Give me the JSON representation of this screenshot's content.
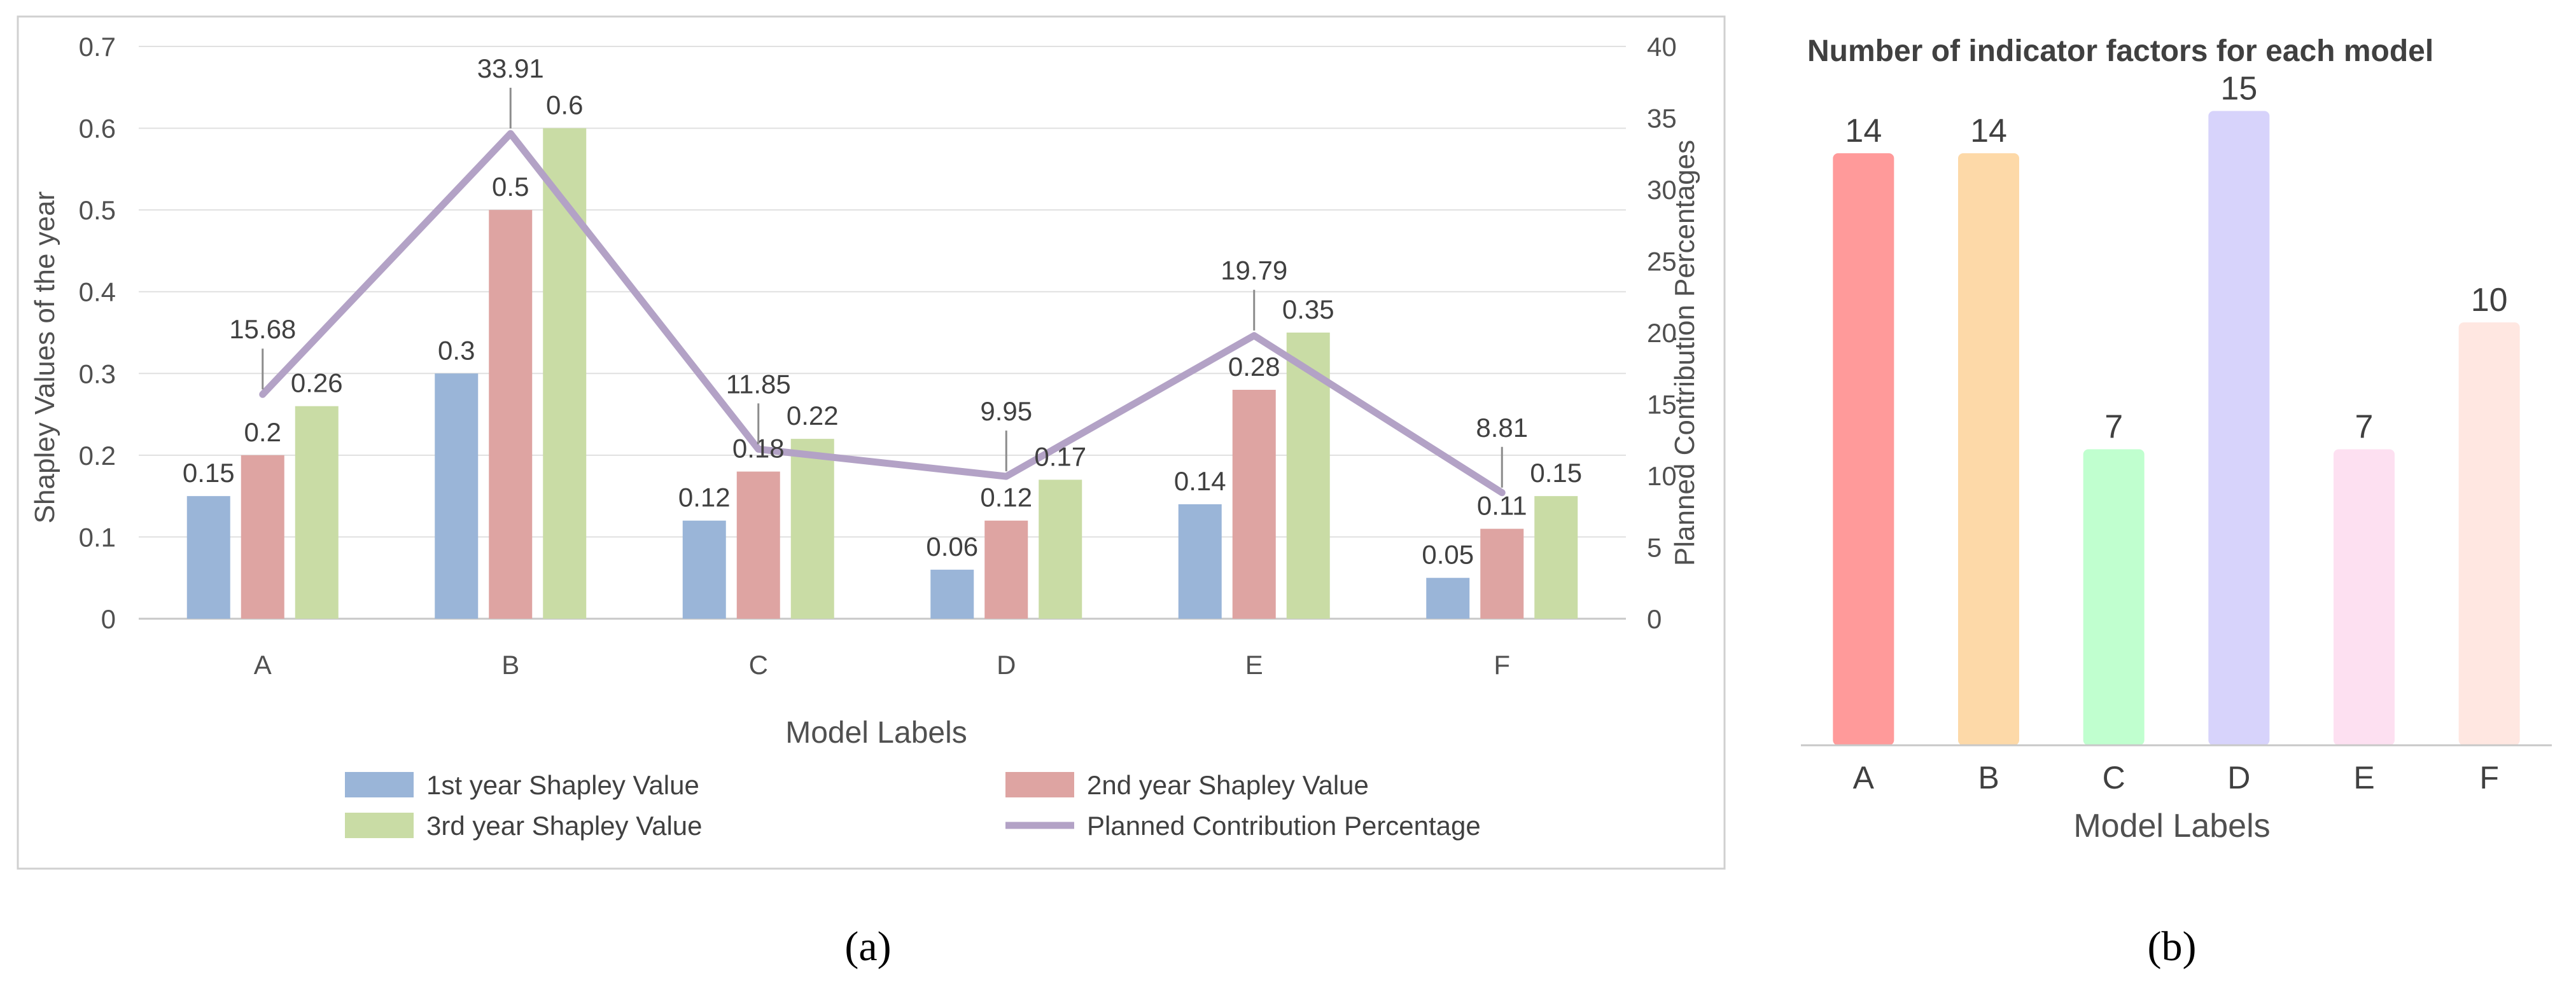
{
  "panel_captions": [
    "(a)",
    "(b)"
  ],
  "chart_data": [
    {
      "type": "bar",
      "categories": [
        "A",
        "B",
        "C",
        "D",
        "E",
        "F"
      ],
      "xlabel": "Model Labels",
      "ylabel": "Shapley Values of the year",
      "y2label": "Planned Contribution Percentages",
      "ylim": [
        0,
        0.7
      ],
      "y2lim": [
        0,
        40
      ],
      "yticks": [
        "0",
        "0.1",
        "0.2",
        "0.3",
        "0.4",
        "0.5",
        "0.6",
        "0.7"
      ],
      "y2ticks": [
        "0",
        "5",
        "10",
        "15",
        "20",
        "25",
        "30",
        "35",
        "40"
      ],
      "grid": true,
      "legend_position": "bottom",
      "series": [
        {
          "name": "1st year Shapley Value",
          "type": "bar",
          "color": "#9ab5d8",
          "values": [
            0.15,
            0.3,
            0.12,
            0.06,
            0.14,
            0.05
          ],
          "labels": [
            "0.15",
            "0.3",
            "0.12",
            "0.06",
            "0.14",
            "0.05"
          ]
        },
        {
          "name": "2nd year Shapley Value",
          "type": "bar",
          "color": "#dea4a2",
          "values": [
            0.2,
            0.5,
            0.18,
            0.12,
            0.28,
            0.11
          ],
          "labels": [
            "0.2",
            "0.5",
            "0.18",
            "0.12",
            "0.28",
            "0.11"
          ]
        },
        {
          "name": "3rd year Shapley Value",
          "type": "bar",
          "color": "#c9dca5",
          "values": [
            0.26,
            0.6,
            0.22,
            0.17,
            0.35,
            0.15
          ],
          "labels": [
            "0.26",
            "0.6",
            "0.22",
            "0.17",
            "0.35",
            "0.15"
          ]
        },
        {
          "name": "Planned Contribution Percentage",
          "type": "line",
          "axis": "right",
          "color": "#b3a2c6",
          "values": [
            15.68,
            33.91,
            11.85,
            9.95,
            19.79,
            8.81
          ],
          "labels": [
            "15.68",
            "33.91",
            "11.85",
            "9.95",
            "19.79",
            "8.81"
          ]
        }
      ]
    },
    {
      "type": "bar",
      "title": "Number of indicator factors for each model",
      "categories": [
        "A",
        "B",
        "C",
        "D",
        "E",
        "F"
      ],
      "xlabel": "Model Labels",
      "ylim": [
        0,
        16
      ],
      "values": [
        14,
        14,
        7,
        15,
        7,
        10
      ],
      "labels": [
        "14",
        "14",
        "7",
        "15",
        "7",
        "10"
      ],
      "colors": [
        "#ff9a9a",
        "#fdd9a8",
        "#c0ffcf",
        "#d7d3fb",
        "#fde0f1",
        "#ffe7e1"
      ]
    }
  ]
}
